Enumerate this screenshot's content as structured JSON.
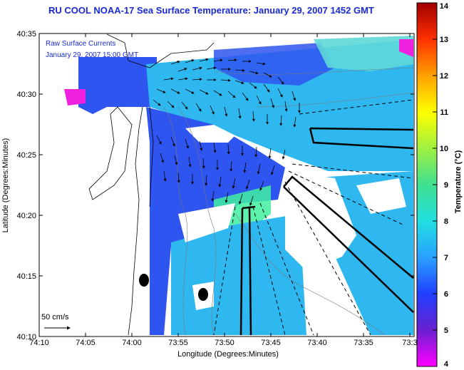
{
  "title": "RU COOL  NOAA-17  Sea Surface Temperature:  January 29, 2007 1452 GMT",
  "overlay": {
    "line1": "Raw Surface Currents",
    "line2": "January 29, 2007 15:00 GMT"
  },
  "axes": {
    "xlabel": "Longitude (Degrees:Minutes)",
    "ylabel": "Latitude (Degrees:Minutes)",
    "x_ticks": [
      "74:10",
      "74:05",
      "74:00",
      "73:55",
      "73:50",
      "73:45",
      "73:40",
      "73:35",
      "73:3"
    ],
    "y_ticks": [
      "40:35",
      "40:30",
      "40:25",
      "40:20",
      "40:15",
      "40:10"
    ]
  },
  "scale": {
    "label": "50 cm/s"
  },
  "colorbar": {
    "label": "Temperature (°C)",
    "ticks": [
      "4",
      "5",
      "6",
      "7",
      "8",
      "9",
      "10",
      "11",
      "12",
      "13",
      "14"
    ],
    "min": 4,
    "max": 14
  },
  "colors": {
    "title": "#1a2ad6",
    "water_blue": "#2f55f0",
    "water_cyan": "#2fb8f0"
  }
}
